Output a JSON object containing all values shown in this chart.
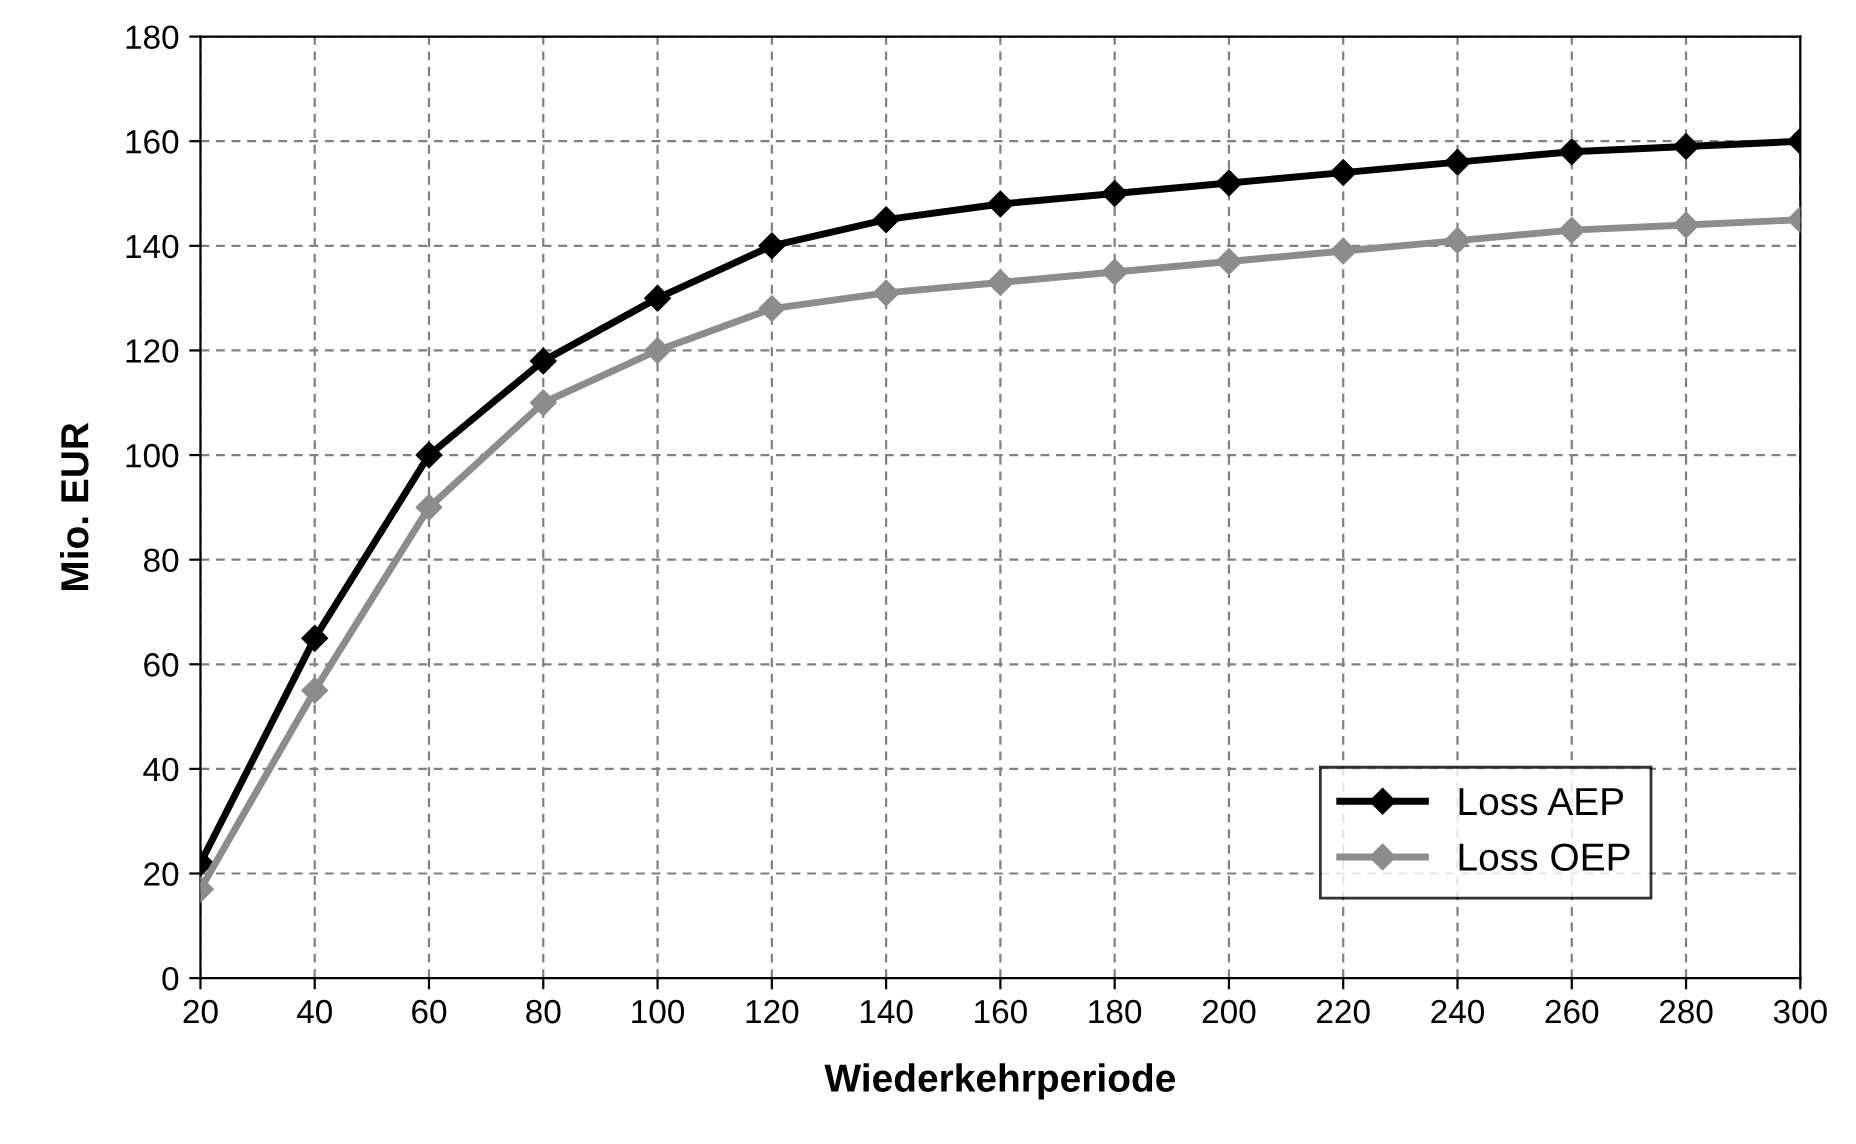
{
  "chart_data": {
    "type": "line",
    "xlabel": "Wiederkehrperiode",
    "ylabel": "Mio. EUR",
    "x": [
      20,
      40,
      60,
      80,
      100,
      120,
      140,
      160,
      180,
      200,
      220,
      240,
      260,
      280,
      300
    ],
    "series": [
      {
        "name": "Loss AEP",
        "color": "#000000",
        "values": [
          22,
          65,
          100,
          118,
          130,
          140,
          145,
          148,
          150,
          152,
          154,
          156,
          158,
          159,
          160
        ]
      },
      {
        "name": "Loss OEP",
        "color": "#8c8c8c",
        "values": [
          17,
          55,
          90,
          110,
          120,
          128,
          131,
          133,
          135,
          137,
          139,
          141,
          143,
          144,
          145
        ]
      }
    ],
    "xlim": [
      20,
      300
    ],
    "xticks": [
      20,
      40,
      60,
      80,
      100,
      120,
      140,
      160,
      180,
      200,
      220,
      240,
      260,
      280,
      300
    ],
    "ylim": [
      0,
      180
    ],
    "yticks": [
      0,
      20,
      40,
      60,
      80,
      100,
      120,
      140,
      160,
      180
    ],
    "grid": true,
    "legend": "bottom right",
    "marker": "diamond",
    "line_style": "solid"
  }
}
